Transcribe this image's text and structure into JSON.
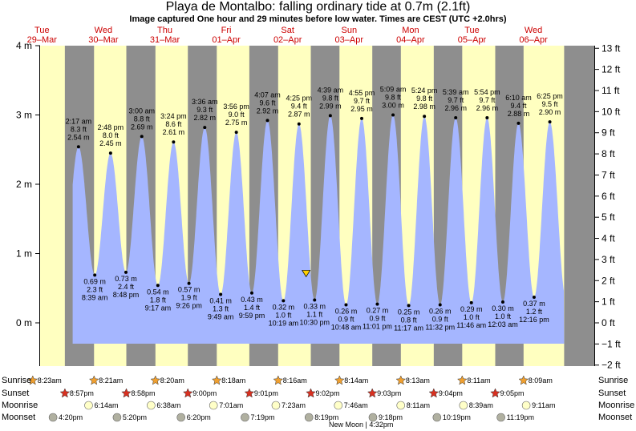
{
  "header": {
    "title": "Playa de Montalbo: falling  ordinary tide at 0.7m (2.1ft)",
    "subtitle": "Image captured One hour and 29 minutes before low water. Times are CEST (UTC +2.0hrs)"
  },
  "days": [
    {
      "weekday": "Tue",
      "date": "29–Mar"
    },
    {
      "weekday": "Wed",
      "date": "30–Mar"
    },
    {
      "weekday": "Thu",
      "date": "31–Mar"
    },
    {
      "weekday": "Fri",
      "date": "01–Apr"
    },
    {
      "weekday": "Sat",
      "date": "02–Apr"
    },
    {
      "weekday": "Sun",
      "date": "03–Apr"
    },
    {
      "weekday": "Mon",
      "date": "04–Apr"
    },
    {
      "weekday": "Tue",
      "date": "05–Apr"
    },
    {
      "weekday": "Wed",
      "date": "06–Apr"
    }
  ],
  "chart_data": {
    "type": "area",
    "title": "Playa de Montalbo: falling  ordinary tide at 0.7m (2.1ft)",
    "x_unit": "days from Tue 29-Mar 00:00 (CEST)",
    "y_left": {
      "unit": "m",
      "range": [
        -0.55,
        4.0
      ],
      "ticks": [
        "4 m",
        "3 m",
        "2 m",
        "1 m",
        "0 m"
      ]
    },
    "y_right": {
      "unit": "ft",
      "ticks": [
        "13 ft",
        "12 ft",
        "11 ft",
        "10 ft",
        "9 ft",
        "8 ft",
        "7 ft",
        "6 ft",
        "5 ft",
        "4 ft",
        "3 ft",
        "2 ft",
        "1 ft",
        "0 ft",
        "−1 ft",
        "−2 ft"
      ]
    },
    "current_level_m": 0.7,
    "tides": [
      {
        "type": "high",
        "time": "2:17 am",
        "ft": "8.3 ft",
        "m": "2.54 m",
        "height": 2.54,
        "t": 1.095
      },
      {
        "type": "low",
        "time": "8:39 am",
        "ft": "2.3 ft",
        "m": "0.69 m",
        "height": 0.69,
        "t": 1.36
      },
      {
        "type": "high",
        "time": "2:48 pm",
        "ft": "8.0 ft",
        "m": "2.45 m",
        "height": 2.45,
        "t": 1.617
      },
      {
        "type": "low",
        "time": "8:48 pm",
        "ft": "2.4 ft",
        "m": "0.73 m",
        "height": 0.73,
        "t": 1.867
      },
      {
        "type": "high",
        "time": "3:00 am",
        "ft": "8.8 ft",
        "m": "2.69 m",
        "height": 2.69,
        "t": 2.125
      },
      {
        "type": "low",
        "time": "9:17 am",
        "ft": "1.8 ft",
        "m": "0.54 m",
        "height": 0.54,
        "t": 2.387
      },
      {
        "type": "high",
        "time": "3:24 pm",
        "ft": "8.6 ft",
        "m": "2.61 m",
        "height": 2.61,
        "t": 2.642
      },
      {
        "type": "low",
        "time": "9:26 pm",
        "ft": "1.9 ft",
        "m": "0.57 m",
        "height": 0.57,
        "t": 2.893
      },
      {
        "type": "high",
        "time": "3:36 am",
        "ft": "9.3 ft",
        "m": "2.82 m",
        "height": 2.82,
        "t": 3.15
      },
      {
        "type": "low",
        "time": "9:49 am",
        "ft": "1.3 ft",
        "m": "0.41 m",
        "height": 0.41,
        "t": 3.409
      },
      {
        "type": "high",
        "time": "3:56 pm",
        "ft": "9.0 ft",
        "m": "2.75 m",
        "height": 2.75,
        "t": 3.664
      },
      {
        "type": "low",
        "time": "9:59 pm",
        "ft": "1.4 ft",
        "m": "0.43 m",
        "height": 0.43,
        "t": 3.916
      },
      {
        "type": "high",
        "time": "4:07 am",
        "ft": "9.6 ft",
        "m": "2.92 m",
        "height": 2.92,
        "t": 4.171
      },
      {
        "type": "low",
        "time": "10:19 am",
        "ft": "1.0 ft",
        "m": "0.32 m",
        "height": 0.32,
        "t": 4.43
      },
      {
        "type": "high",
        "time": "4:25 pm",
        "ft": "9.4 ft",
        "m": "2.87 m",
        "height": 2.87,
        "t": 4.684
      },
      {
        "type": "low",
        "time": "10:30 pm",
        "ft": "1.1 ft",
        "m": "0.33 m",
        "height": 0.33,
        "t": 4.938
      },
      {
        "type": "high",
        "time": "4:39 am",
        "ft": "9.8 ft",
        "m": "2.99 m",
        "height": 2.99,
        "t": 5.194
      },
      {
        "type": "low",
        "time": "10:48 am",
        "ft": "0.9 ft",
        "m": "0.26 m",
        "height": 0.26,
        "t": 5.45
      },
      {
        "type": "high",
        "time": "4:55 pm",
        "ft": "9.7 ft",
        "m": "2.95 m",
        "height": 2.95,
        "t": 5.705
      },
      {
        "type": "low",
        "time": "11:01 pm",
        "ft": "0.9 ft",
        "m": "0.27 m",
        "height": 0.27,
        "t": 5.959
      },
      {
        "type": "high",
        "time": "5:09 am",
        "ft": "9.8 ft",
        "m": "3.00 m",
        "height": 3.0,
        "t": 6.215
      },
      {
        "type": "low",
        "time": "11:17 am",
        "ft": "0.8 ft",
        "m": "0.25 m",
        "height": 0.25,
        "t": 6.47
      },
      {
        "type": "high",
        "time": "5:24 pm",
        "ft": "9.8 ft",
        "m": "2.98 m",
        "height": 2.98,
        "t": 6.725
      },
      {
        "type": "low",
        "time": "11:32 pm",
        "ft": "0.9 ft",
        "m": "0.26 m",
        "height": 0.26,
        "t": 6.981
      },
      {
        "type": "high",
        "time": "5:39 am",
        "ft": "9.7 ft",
        "m": "2.96 m",
        "height": 2.96,
        "t": 7.235
      },
      {
        "type": "low",
        "time": "11:46 am",
        "ft": "1.0 ft",
        "m": "0.29 m",
        "height": 0.29,
        "t": 7.49
      },
      {
        "type": "high",
        "time": "5:54 pm",
        "ft": "9.7 ft",
        "m": "2.96 m",
        "height": 2.96,
        "t": 7.746
      },
      {
        "type": "low",
        "time": "12:03 am",
        "ft": "1.0 ft",
        "m": "0.30 m",
        "height": 0.3,
        "t": 8.002
      },
      {
        "type": "high",
        "time": "6:10 am",
        "ft": "9.4 ft",
        "m": "2.88 m",
        "height": 2.88,
        "t": 8.257
      },
      {
        "type": "low",
        "time": "12:16 pm",
        "ft": "1.2 ft",
        "m": "0.37 m",
        "height": 0.37,
        "t": 8.511
      },
      {
        "type": "high",
        "time": "6:25 pm",
        "ft": "9.5 ft",
        "m": "2.90 m",
        "height": 2.9,
        "t": 8.767
      }
    ],
    "daylight": [
      {
        "sunrise": "8:23am",
        "sunset": "8:57pm"
      },
      {
        "sunrise": "8:21am",
        "sunset": "8:58pm"
      },
      {
        "sunrise": "8:20am",
        "sunset": "9:00pm"
      },
      {
        "sunrise": "8:18am",
        "sunset": "9:01pm"
      },
      {
        "sunrise": "8:16am",
        "sunset": "9:02pm"
      },
      {
        "sunrise": "8:14am",
        "sunset": "9:03pm"
      },
      {
        "sunrise": "8:13am",
        "sunset": "9:04pm"
      },
      {
        "sunrise": "8:11am",
        "sunset": "9:05pm"
      },
      {
        "sunrise": "8:09am",
        "sunset": ""
      }
    ],
    "moonrise": [
      "6:14am",
      "6:38am",
      "7:01am",
      "7:23am",
      "7:46am",
      "8:11am",
      "8:39am",
      "9:11am"
    ],
    "moonset": [
      "4:20pm",
      "5:20pm",
      "6:20pm",
      "7:19pm",
      "8:19pm",
      "9:18pm",
      "10:19pm",
      "11:19pm"
    ],
    "moon_phase": "New Moon | 4:32pm"
  },
  "legend_labels": {
    "sunrise": "Sunrise",
    "sunset": "Sunset",
    "moonrise": "Moonrise",
    "moonset": "Moonset"
  },
  "colors": {
    "water": "#a5b6ff",
    "day": "#ffffc0",
    "night": "#8e8e8e",
    "day_label": "#cc0000",
    "sun_icon": "#f0a030",
    "sunset_icon": "#d83020",
    "moonrise_icon": "#ffffc8",
    "moonset_icon": "#b0b0a0",
    "marker": "#ffd000"
  }
}
